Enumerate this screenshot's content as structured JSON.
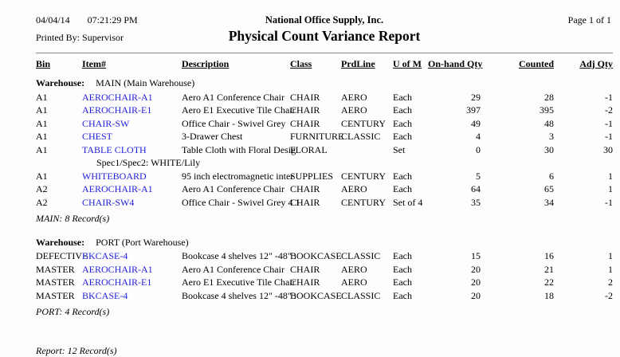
{
  "report": {
    "date": "04/04/14",
    "time": "07:21:29 PM",
    "printed_by_label": "Printed By:",
    "printed_by": "Supervisor",
    "company": "National Office Supply, Inc.",
    "title": "Physical Count Variance Report",
    "page": "Page 1 of 1"
  },
  "table": {
    "columns": [
      "Bin",
      "Item#",
      "Description",
      "Class",
      "PrdLine",
      "U of M",
      "On-hand Qty",
      "Counted",
      "Adj Qty"
    ],
    "groups": [
      {
        "warehouse_label": "Warehouse:",
        "warehouse_name": "MAIN (Main Warehouse)",
        "rows": [
          {
            "bin": "A1",
            "item": "AEROCHAIR-A1",
            "description": "Aero A1 Conference Chair",
            "class": "CHAIR",
            "prdline": "AERO",
            "uom": "Each",
            "onhand": "29",
            "counted": "28",
            "adj": "-1"
          },
          {
            "bin": "A1",
            "item": "AEROCHAIR-E1",
            "description": "Aero E1 Executive Tile Chair",
            "class": "CHAIR",
            "prdline": "AERO",
            "uom": "Each",
            "onhand": "397",
            "counted": "395",
            "adj": "-2"
          },
          {
            "bin": "A1",
            "item": "CHAIR-SW",
            "description": "Office Chair - Swivel Grey",
            "class": "CHAIR",
            "prdline": "CENTURY",
            "uom": "Each",
            "onhand": "49",
            "counted": "48",
            "adj": "-1"
          },
          {
            "bin": "A1",
            "item": "CHEST",
            "description": "3-Drawer Chest",
            "class": "FURNITURE",
            "prdline": "CLASSIC",
            "uom": "Each",
            "onhand": "4",
            "counted": "3",
            "adj": "-1"
          },
          {
            "bin": "A1",
            "item": "TABLE CLOTH",
            "description": "Table Cloth with Floral Desig",
            "class": "FLORAL",
            "prdline": "",
            "uom": "Set",
            "onhand": "0",
            "counted": "30",
            "adj": "30",
            "spec": "Spec1/Spec2: WHITE/Lily"
          },
          {
            "bin": "A1",
            "item": "WHITEBOARD",
            "description": "95 inch electromagnetic inter",
            "class": "SUPPLIES",
            "prdline": "CENTURY",
            "uom": "Each",
            "onhand": "5",
            "counted": "6",
            "adj": "1"
          },
          {
            "bin": "A2",
            "item": "AEROCHAIR-A1",
            "description": "Aero A1 Conference Chair",
            "class": "CHAIR",
            "prdline": "AERO",
            "uom": "Each",
            "onhand": "64",
            "counted": "65",
            "adj": "1"
          },
          {
            "bin": "A2",
            "item": "CHAIR-SW4",
            "description": "Office Chair - Swivel Grey 4 1",
            "class": "CHAIR",
            "prdline": "CENTURY",
            "uom": "Set of 4",
            "onhand": "35",
            "counted": "34",
            "adj": "-1"
          }
        ],
        "total": "MAIN: 8 Record(s)"
      },
      {
        "warehouse_label": "Warehouse:",
        "warehouse_name": "PORT (Port Warehouse)",
        "rows": [
          {
            "bin": "DEFECTIVE",
            "item": "BKCASE-4",
            "description": "Bookcase 4 shelves 12\" -48\" :",
            "class": "BOOKCASE",
            "prdline": "CLASSIC",
            "uom": "Each",
            "onhand": "15",
            "counted": "16",
            "adj": "1"
          },
          {
            "bin": "MASTER",
            "item": "AEROCHAIR-A1",
            "description": "Aero A1 Conference Chair",
            "class": "CHAIR",
            "prdline": "AERO",
            "uom": "Each",
            "onhand": "20",
            "counted": "21",
            "adj": "1"
          },
          {
            "bin": "MASTER",
            "item": "AEROCHAIR-E1",
            "description": "Aero E1 Executive Tile Chair",
            "class": "CHAIR",
            "prdline": "AERO",
            "uom": "Each",
            "onhand": "20",
            "counted": "22",
            "adj": "2"
          },
          {
            "bin": "MASTER",
            "item": "BKCASE-4",
            "description": "Bookcase 4 shelves 12\" -48\" :",
            "class": "BOOKCASE",
            "prdline": "CLASSIC",
            "uom": "Each",
            "onhand": "20",
            "counted": "18",
            "adj": "-2"
          }
        ],
        "total": "PORT: 4 Record(s)"
      }
    ],
    "report_total": "Report: 12 Record(s)"
  },
  "colors": {
    "link": "#2222dd",
    "text": "#000000",
    "background": "#fdfdfd",
    "rule": "#8a8a8a"
  }
}
